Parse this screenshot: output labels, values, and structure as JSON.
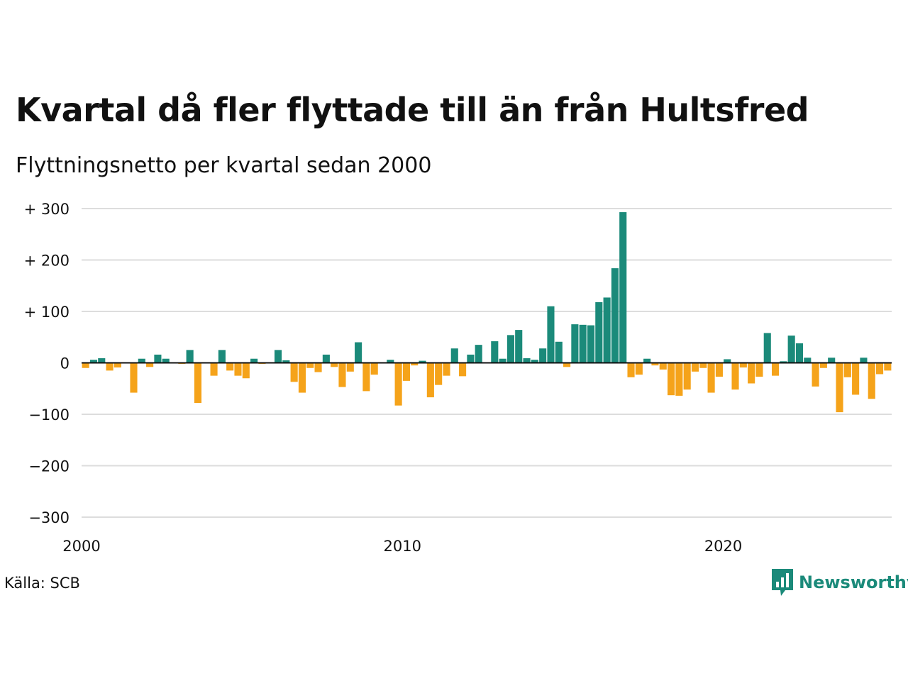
{
  "header": {
    "title": "Kvartal då fler flyttade till än från Hultsfred",
    "subtitle": "Flyttningsnetto per kvartal sedan 2000"
  },
  "footer": {
    "source": "Källa: SCB",
    "brand": "Newsworthy"
  },
  "colors": {
    "positive": "#1b8a7a",
    "negative": "#f5a31a",
    "gridline": "#dddddd",
    "zeroline": "#111111",
    "brand": "#1b8a7a"
  },
  "chart_data": {
    "type": "bar",
    "title": "Kvartal då fler flyttade till än från Hultsfred",
    "subtitle": "Flyttningsnetto per kvartal sedan 2000",
    "xlabel": "",
    "ylabel": "",
    "ylim": [
      -300,
      300
    ],
    "yticks": [
      {
        "value": 300,
        "label": "+ 300"
      },
      {
        "value": 200,
        "label": "+ 200"
      },
      {
        "value": 100,
        "label": "+ 100"
      },
      {
        "value": 0,
        "label": "0"
      },
      {
        "value": -100,
        "label": "−100"
      },
      {
        "value": -200,
        "label": "−200"
      },
      {
        "value": -300,
        "label": "−300"
      }
    ],
    "xticks": [
      {
        "year": 2000,
        "label": "2000"
      },
      {
        "year": 2010,
        "label": "2010"
      },
      {
        "year": 2020,
        "label": "2020"
      }
    ],
    "start_year": 2000,
    "grid": true,
    "legend": "none",
    "values": [
      -10,
      6,
      9,
      -15,
      -9,
      0,
      -58,
      8,
      -8,
      16,
      8,
      0,
      -2,
      25,
      -78,
      0,
      -25,
      25,
      -15,
      -25,
      -30,
      8,
      -2,
      0,
      25,
      5,
      -37,
      -58,
      -10,
      -18,
      16,
      -8,
      -47,
      -17,
      40,
      -55,
      -23,
      0,
      6,
      -83,
      -35,
      -5,
      4,
      -67,
      -43,
      -25,
      28,
      -26,
      16,
      35,
      0,
      42,
      8,
      54,
      64,
      9,
      6,
      28,
      110,
      41,
      -8,
      75,
      74,
      73,
      118,
      127,
      184,
      293,
      -28,
      -23,
      8,
      -5,
      -13,
      -63,
      -64,
      -52,
      -17,
      -10,
      -58,
      -27,
      7,
      -52,
      -9,
      -40,
      -27,
      58,
      -25,
      3,
      53,
      38,
      10,
      -46,
      -10,
      10,
      -96,
      -28,
      -62,
      10,
      -70,
      -22,
      -15
    ]
  }
}
